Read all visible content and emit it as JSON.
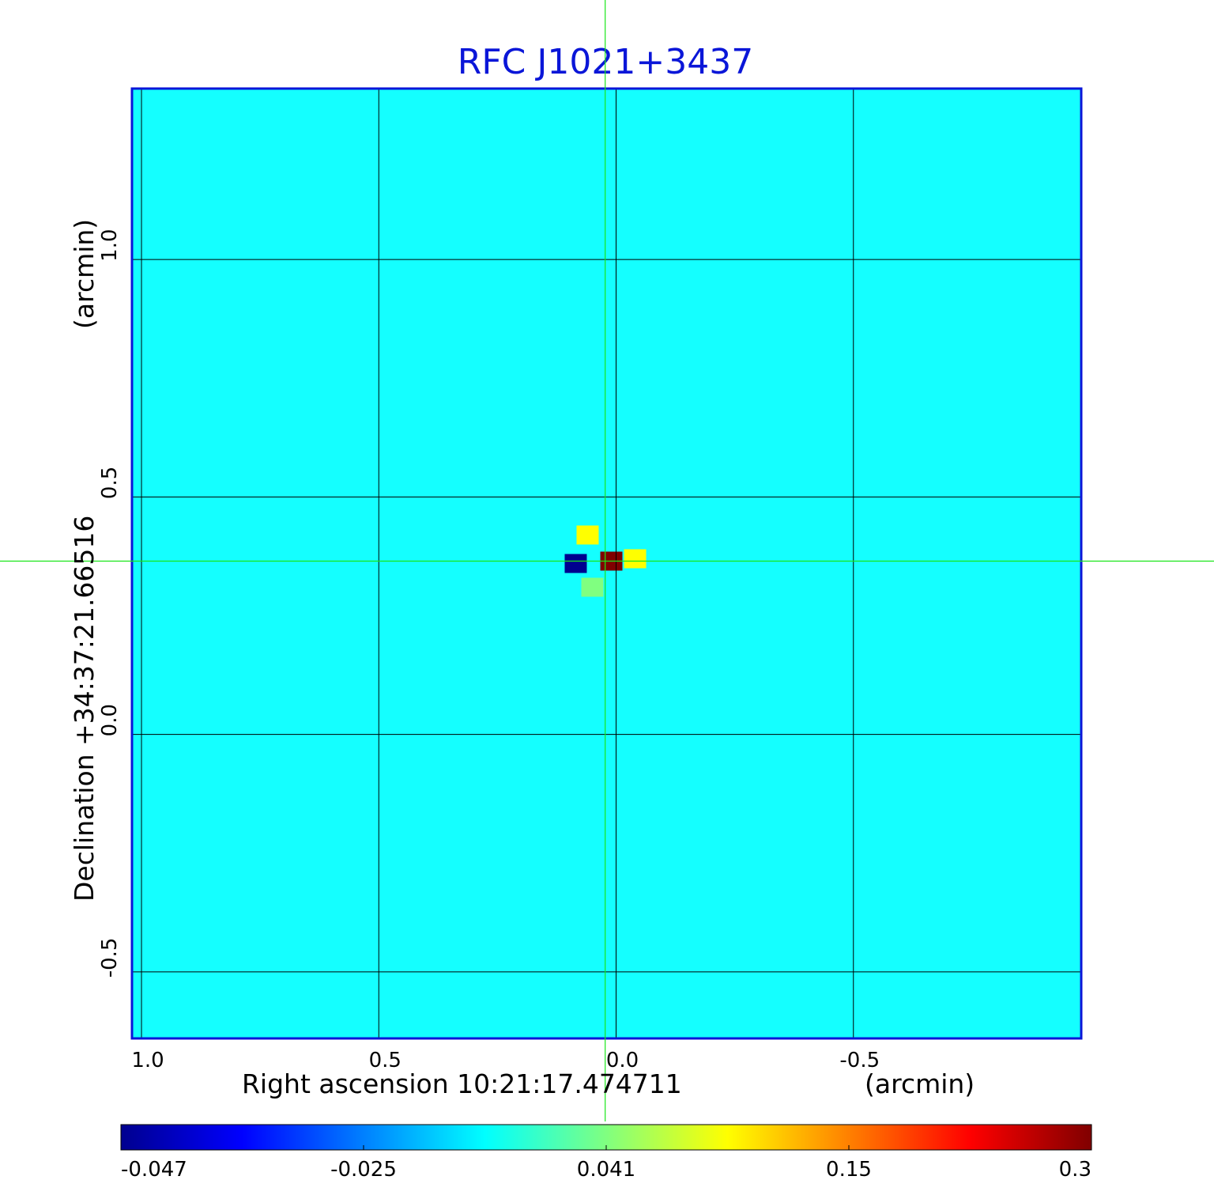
{
  "chart_data": {
    "type": "heatmap",
    "title": "RFC J1021+3437",
    "xlabel": "Right ascension  10:21:17.474711",
    "xunit": "(arcmin)",
    "ylabel": "Declination  +34:37:21.66516",
    "yunit": "(arcmin)",
    "x_ticks": [
      {
        "value": 1.0,
        "label": "1.0"
      },
      {
        "value": 0.5,
        "label": "0.5"
      },
      {
        "value": 0.0,
        "label": "0.0"
      },
      {
        "value": -0.5,
        "label": "-0.5"
      }
    ],
    "y_ticks": [
      {
        "value": 1.0,
        "label": "1.0"
      },
      {
        "value": 0.5,
        "label": "0.5"
      },
      {
        "value": 0.0,
        "label": "0.0"
      },
      {
        "value": -0.5,
        "label": "-0.5"
      }
    ],
    "xlim": [
      1.02,
      -0.98
    ],
    "ylim": [
      -0.64,
      1.36
    ],
    "grid": true,
    "crosshair": {
      "x": 0.023,
      "y": 0.365
    },
    "background_value": 0.02,
    "features": [
      {
        "x": 0.01,
        "y": 0.365,
        "value": 0.3
      },
      {
        "x": 0.085,
        "y": 0.36,
        "value": -0.047
      },
      {
        "x": 0.06,
        "y": 0.42,
        "value": 0.15
      },
      {
        "x": -0.04,
        "y": 0.37,
        "value": 0.15
      },
      {
        "x": 0.05,
        "y": 0.31,
        "value": 0.12
      }
    ],
    "colorbar": {
      "min": -0.047,
      "max": 0.3,
      "tick_labels": [
        "-0.047",
        "-0.025",
        "0.041",
        "0.15",
        "0.3"
      ],
      "colors": [
        "#00008f",
        "#0000ff",
        "#0080ff",
        "#00ffff",
        "#80ff80",
        "#ffff00",
        "#ff8000",
        "#ff0000",
        "#800000"
      ]
    },
    "colors": {
      "frame": "#0a16d8",
      "crosshair": "#19e619",
      "grid": "#000000",
      "background": "#14ffff"
    }
  }
}
